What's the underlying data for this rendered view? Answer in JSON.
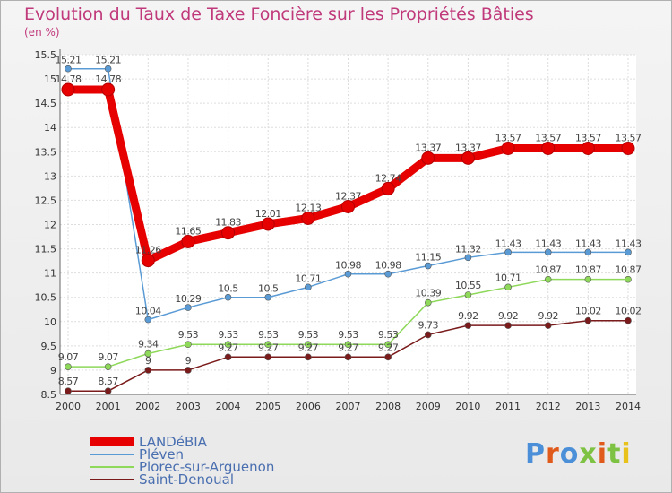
{
  "title": "Evolution du Taux de Taxe Foncière sur les Propriétés Bâties",
  "unit": "(en %)",
  "logo": "Proxiti",
  "chart_data": {
    "type": "line",
    "x": [
      "2000",
      "2001",
      "2002",
      "2003",
      "2004",
      "2005",
      "2006",
      "2007",
      "2008",
      "2009",
      "2010",
      "2011",
      "2012",
      "2013",
      "2014"
    ],
    "ylim": [
      8.5,
      15.5
    ],
    "yticks": [
      "8.5",
      "9",
      "9.5",
      "10",
      "10.5",
      "11",
      "11.5",
      "12",
      "12.5",
      "13",
      "13.5",
      "14",
      "14.5",
      "15",
      "15.5"
    ],
    "grid": true,
    "legend_position": "bottom-left",
    "series": [
      {
        "name": "LANDéBIA",
        "color": "#e60000",
        "values": [
          14.78,
          14.78,
          11.26,
          11.65,
          11.83,
          12.01,
          12.13,
          12.37,
          12.74,
          13.37,
          13.37,
          13.57,
          13.57,
          13.57,
          13.57
        ],
        "labels": [
          "14.78",
          "14.78",
          "11.26",
          "11.65",
          "11.83",
          "12.01",
          "12.13",
          "12.37",
          "12.74",
          "13.37",
          "13.37",
          "13.57",
          "13.57",
          "13.57",
          "13.57"
        ]
      },
      {
        "name": "Pléven",
        "color": "#5b9bd5",
        "values": [
          15.21,
          15.21,
          10.04,
          10.29,
          10.5,
          10.5,
          10.71,
          10.98,
          10.98,
          11.15,
          11.32,
          11.43,
          11.43,
          11.43,
          11.43
        ],
        "labels": [
          "15.21",
          "15.21",
          "10.04",
          "10.29",
          "10.5",
          "10.5",
          "10.71",
          "10.98",
          "10.98",
          "11.15",
          "11.32",
          "11.43",
          "11.43",
          "11.43",
          "11.43"
        ]
      },
      {
        "name": "Plorec-sur-Arguenon",
        "color": "#8ed85a",
        "values": [
          9.07,
          9.07,
          9.34,
          9.53,
          9.53,
          9.53,
          9.53,
          9.53,
          9.53,
          10.39,
          10.55,
          10.71,
          10.87,
          10.87,
          10.87
        ],
        "labels": [
          "9.07",
          "9.07",
          "9.34",
          "9.53",
          "9.53",
          "9.53",
          "9.53",
          "9.53",
          "9.53",
          "10.39",
          "10.55",
          "10.71",
          "10.87",
          "10.87",
          "10.87"
        ]
      },
      {
        "name": "Saint-Denoual",
        "color": "#7a1a1a",
        "values": [
          8.57,
          8.57,
          9,
          9,
          9.27,
          9.27,
          9.27,
          9.27,
          9.27,
          9.73,
          9.92,
          9.92,
          9.92,
          10.02,
          10.02
        ],
        "labels": [
          "8.57",
          "8.57",
          "9",
          "9",
          "9.27",
          "9.27",
          "9.27",
          "9.27",
          "9.27",
          "9.73",
          "9.92",
          "9.92",
          "9.92",
          "10.02",
          "10.02"
        ]
      }
    ]
  }
}
